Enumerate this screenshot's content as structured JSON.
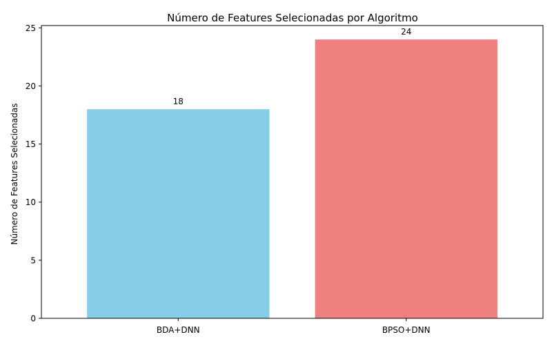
{
  "chart_data": {
    "type": "bar",
    "title": "Número de Features Selecionadas por Algoritmo",
    "xlabel": "",
    "ylabel": "Número de Features Selecionadas",
    "categories": [
      "BDA+DNN",
      "BPSO+DNN"
    ],
    "values": [
      18,
      24
    ],
    "value_labels": [
      "18",
      "24"
    ],
    "colors": [
      "#87ceeb",
      "#f08080"
    ],
    "ylim": [
      0,
      25.2
    ],
    "yticks": [
      0,
      5,
      10,
      15,
      20,
      25
    ],
    "grid": false,
    "legend": "none"
  }
}
